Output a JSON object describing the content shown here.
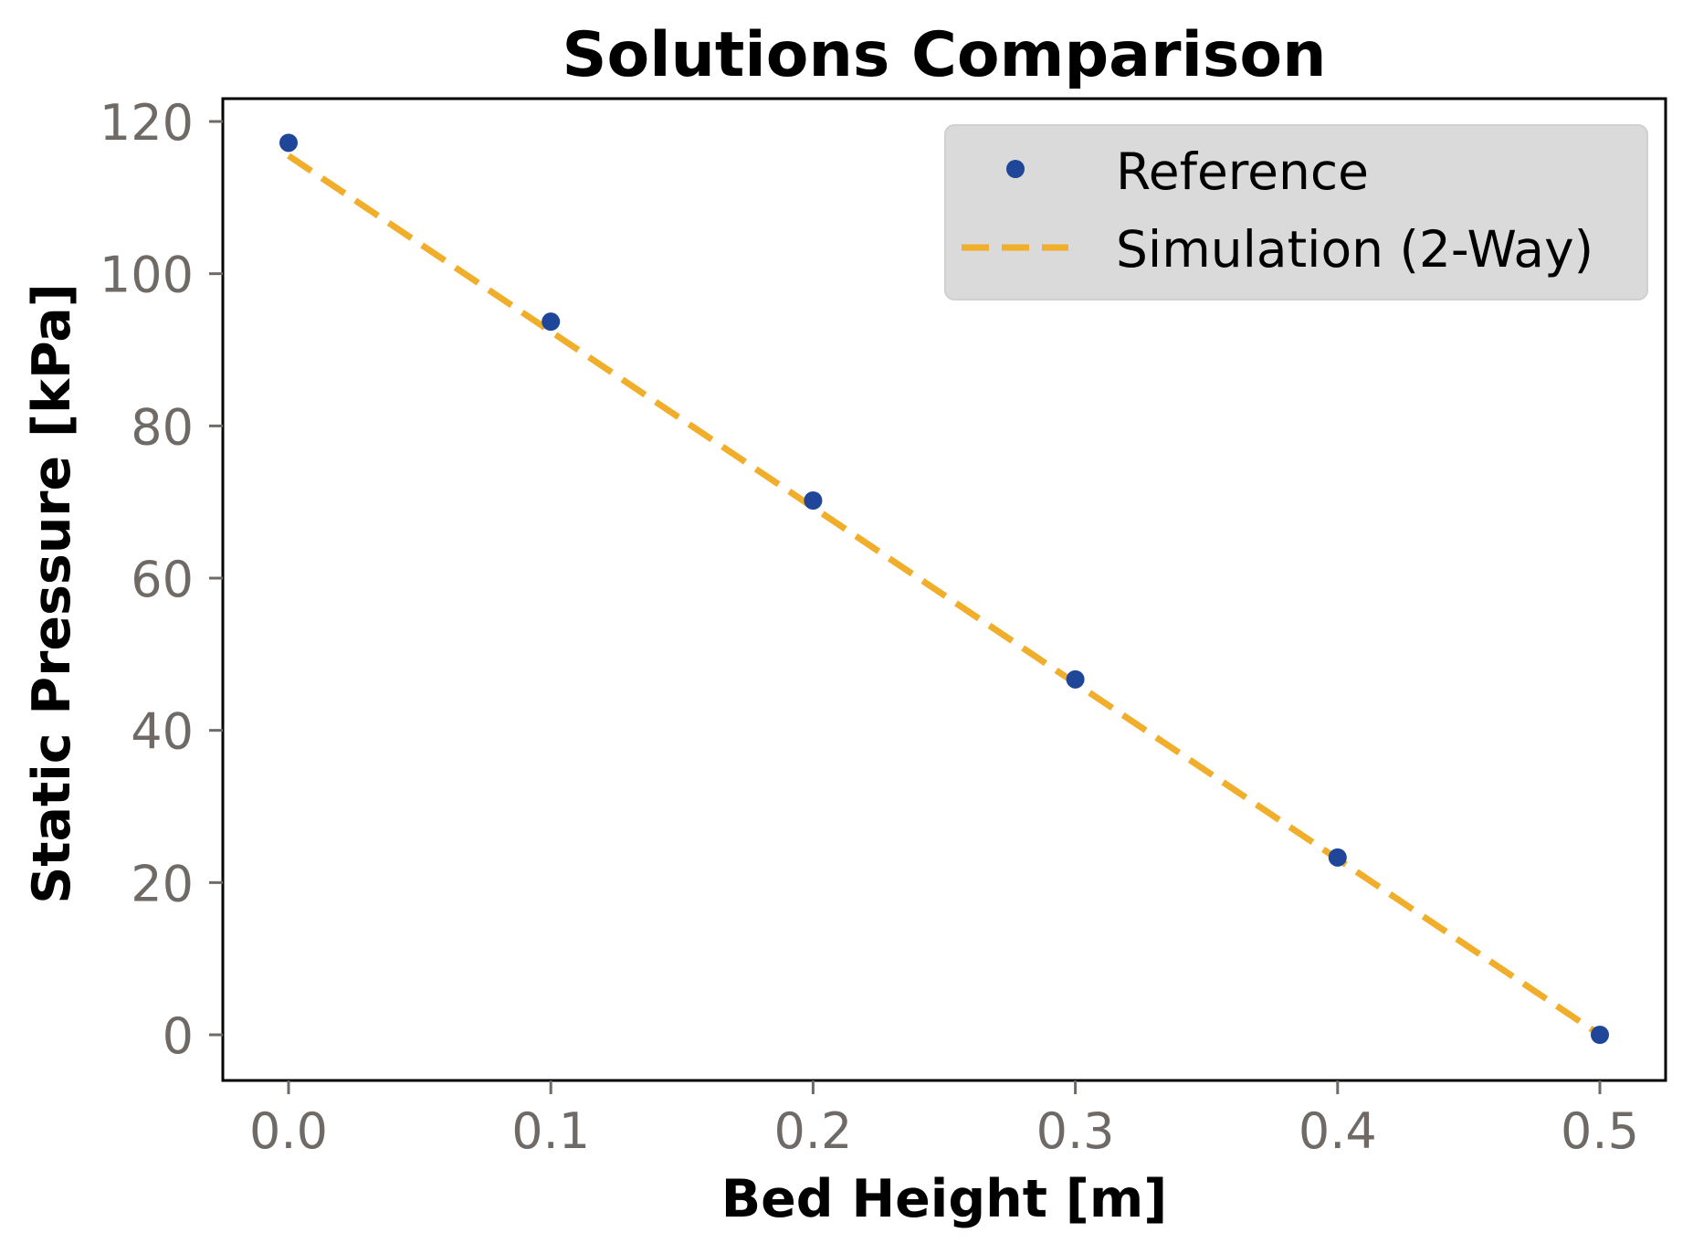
{
  "chart_data": {
    "type": "line",
    "title": "Solutions Comparison",
    "xlabel": "Bed Height [m]",
    "ylabel": "Static Pressure [kPa]",
    "xlim": [
      -0.025,
      0.525
    ],
    "ylim": [
      -6,
      123
    ],
    "xticks": [
      0.0,
      0.1,
      0.2,
      0.3,
      0.4,
      0.5
    ],
    "xtick_labels": [
      "0.0",
      "0.1",
      "0.2",
      "0.3",
      "0.4",
      "0.5"
    ],
    "yticks": [
      0,
      20,
      40,
      60,
      80,
      100,
      120
    ],
    "ytick_labels": [
      "0",
      "20",
      "40",
      "60",
      "80",
      "100",
      "120"
    ],
    "grid": false,
    "legend_position": "upper right",
    "x": [
      0.0,
      0.1,
      0.2,
      0.3,
      0.4,
      0.5
    ],
    "series": [
      {
        "name": "Reference",
        "style": "markers",
        "color": "#1f4699",
        "x": [
          0.0,
          0.1,
          0.2,
          0.3,
          0.4,
          0.5
        ],
        "values": [
          117.2,
          93.7,
          70.2,
          46.7,
          23.3,
          0.0
        ]
      },
      {
        "name": "Simulation (2-Way)",
        "style": "dashed-line",
        "color": "#f0ae2b",
        "x": [
          0.0,
          0.5
        ],
        "values": [
          115.5,
          0.0
        ]
      }
    ]
  },
  "colors": {
    "reference": "#1f4699",
    "simulation": "#f0ae2b",
    "legend_bg": "#dadada",
    "tick_text": "#6f6a66"
  }
}
